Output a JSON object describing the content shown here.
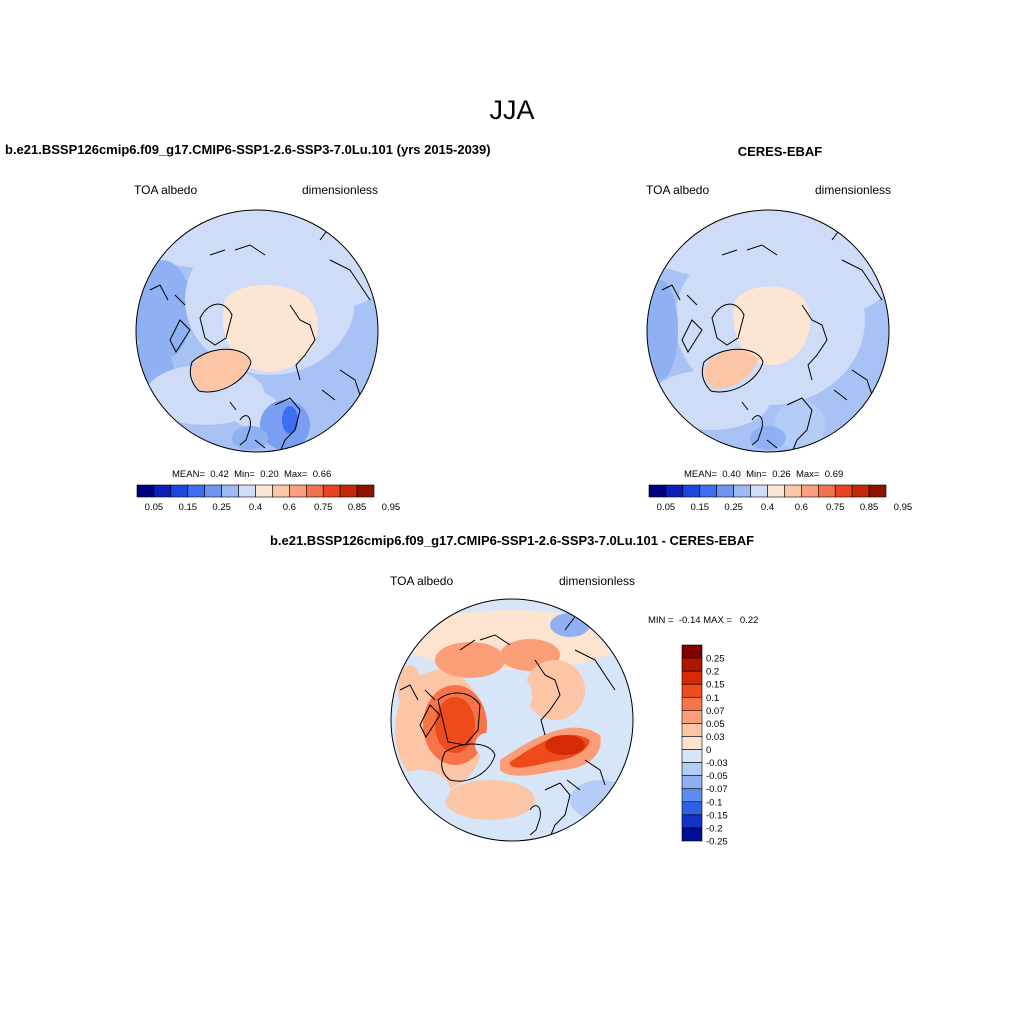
{
  "main_title": "JJA",
  "panels": [
    {
      "title": "b.e21.BSSP126cmip6.f09_g17.CMIP6-SSP1-2.6-SSP3-7.0Lu.101 (yrs 2015-2039)",
      "left_label": "TOA albedo",
      "right_label": "dimensionless",
      "stats": {
        "mean_label": "MEAN=",
        "mean": "0.42",
        "min_label": "Min=",
        "min": "0.20",
        "max_label": "Max=",
        "max": "0.66"
      }
    },
    {
      "title": "CERES-EBAF",
      "left_label": "TOA albedo",
      "right_label": "dimensionless",
      "stats": {
        "mean_label": "MEAN=",
        "mean": "0.40",
        "min_label": "Min=",
        "min": "0.26",
        "max_label": "Max=",
        "max": "0.69"
      }
    },
    {
      "title": "b.e21.BSSP126cmip6.f09_g17.CMIP6-SSP1-2.6-SSP3-7.0Lu.101 - CERES-EBAF",
      "left_label": "TOA albedo",
      "right_label": "dimensionless",
      "stats": {
        "min_label": "MIN =",
        "min": "-0.14",
        "max_label": "MAX =",
        "max": "0.22"
      }
    }
  ],
  "colorbar_abs": {
    "labels": [
      "0.05",
      "0.15",
      "0.25",
      "0.4",
      "0.6",
      "0.75",
      "0.85",
      "0.95"
    ],
    "colors": [
      "#00007f",
      "#0a1fb3",
      "#1e47e0",
      "#3b6ef0",
      "#6f94f2",
      "#9fb9f5",
      "#cfdcf8",
      "#fde5d3",
      "#fcc7a9",
      "#f9a17d",
      "#f2734f",
      "#e64520",
      "#c42a0a",
      "#8e1200"
    ]
  },
  "colorbar_diff": {
    "labels": [
      "0.25",
      "0.2",
      "0.15",
      "0.1",
      "0.07",
      "0.05",
      "0.03",
      "0",
      "-0.03",
      "-0.05",
      "-0.07",
      "-0.1",
      "-0.15",
      "-0.2",
      "-0.25"
    ],
    "colors": [
      "#7f0000",
      "#b01500",
      "#d62a04",
      "#ef4a1c",
      "#f7744a",
      "#fb9e78",
      "#fcc6a6",
      "#fde4d1",
      "#d7e5f9",
      "#b4cdf7",
      "#8fb1f3",
      "#5d8bef",
      "#2f5fe3",
      "#1432c4",
      "#000c93"
    ]
  }
}
